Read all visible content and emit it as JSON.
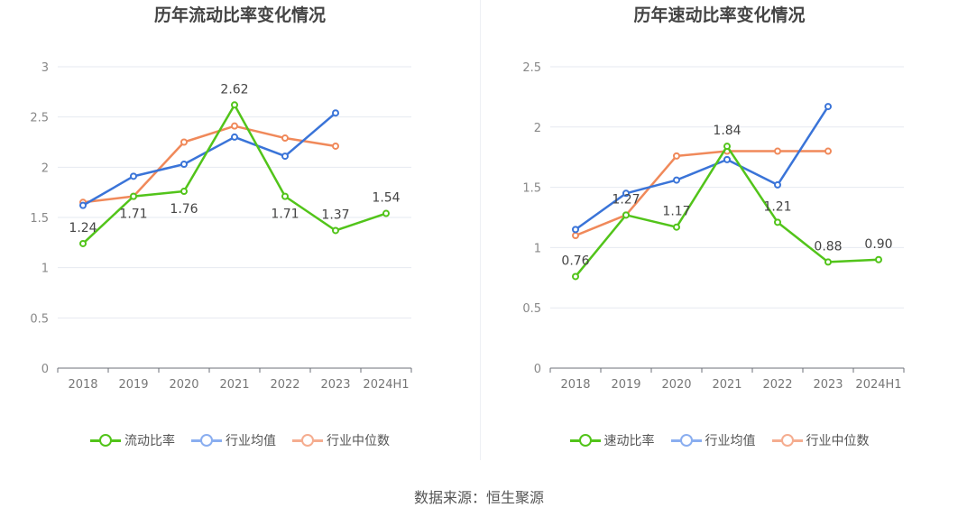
{
  "chart_data": [
    {
      "type": "line",
      "title": "历年流动比率变化情况",
      "categories": [
        "2018",
        "2019",
        "2020",
        "2021",
        "2022",
        "2023",
        "2024H1"
      ],
      "ylim": [
        0,
        3
      ],
      "yticks": [
        "0",
        "0.5",
        "1",
        "1.5",
        "2",
        "2.5",
        "3"
      ],
      "grid": true,
      "legend": "bottom",
      "series": [
        {
          "name": "流动比率",
          "color": "#52c41a",
          "values": [
            1.24,
            1.71,
            1.76,
            2.62,
            1.71,
            1.37,
            1.54
          ],
          "labels": [
            "1.24",
            "1.71",
            "1.76",
            "2.62",
            "1.71",
            "1.37",
            "1.54"
          ]
        },
        {
          "name": "行业均值",
          "color": "#3a74d8",
          "values": [
            1.62,
            1.91,
            2.03,
            2.3,
            2.11,
            2.54,
            null
          ]
        },
        {
          "name": "行业中位数",
          "color": "#f0895a",
          "values": [
            1.65,
            1.71,
            2.25,
            2.41,
            2.29,
            2.21,
            null
          ]
        }
      ]
    },
    {
      "type": "line",
      "title": "历年速动比率变化情况",
      "categories": [
        "2018",
        "2019",
        "2020",
        "2021",
        "2022",
        "2023",
        "2024H1"
      ],
      "ylim": [
        0,
        2.5
      ],
      "yticks": [
        "0",
        "0.5",
        "1",
        "1.5",
        "2",
        "2.5"
      ],
      "grid": true,
      "legend": "bottom",
      "series": [
        {
          "name": "速动比率",
          "color": "#52c41a",
          "values": [
            0.76,
            1.27,
            1.17,
            1.84,
            1.21,
            0.88,
            0.9
          ],
          "labels": [
            "0.76",
            "1.27",
            "1.17",
            "1.84",
            "1.21",
            "0.88",
            "0.90"
          ]
        },
        {
          "name": "行业均值",
          "color": "#3a74d8",
          "values": [
            1.15,
            1.45,
            1.56,
            1.73,
            1.52,
            2.17,
            null
          ]
        },
        {
          "name": "行业中位数",
          "color": "#f0895a",
          "values": [
            1.1,
            1.27,
            1.76,
            1.8,
            1.8,
            1.8,
            null
          ]
        }
      ]
    }
  ],
  "legend_colors": [
    "#52c41a",
    "#8aaef0",
    "#f5ad90"
  ],
  "source": "数据来源：恒生聚源"
}
